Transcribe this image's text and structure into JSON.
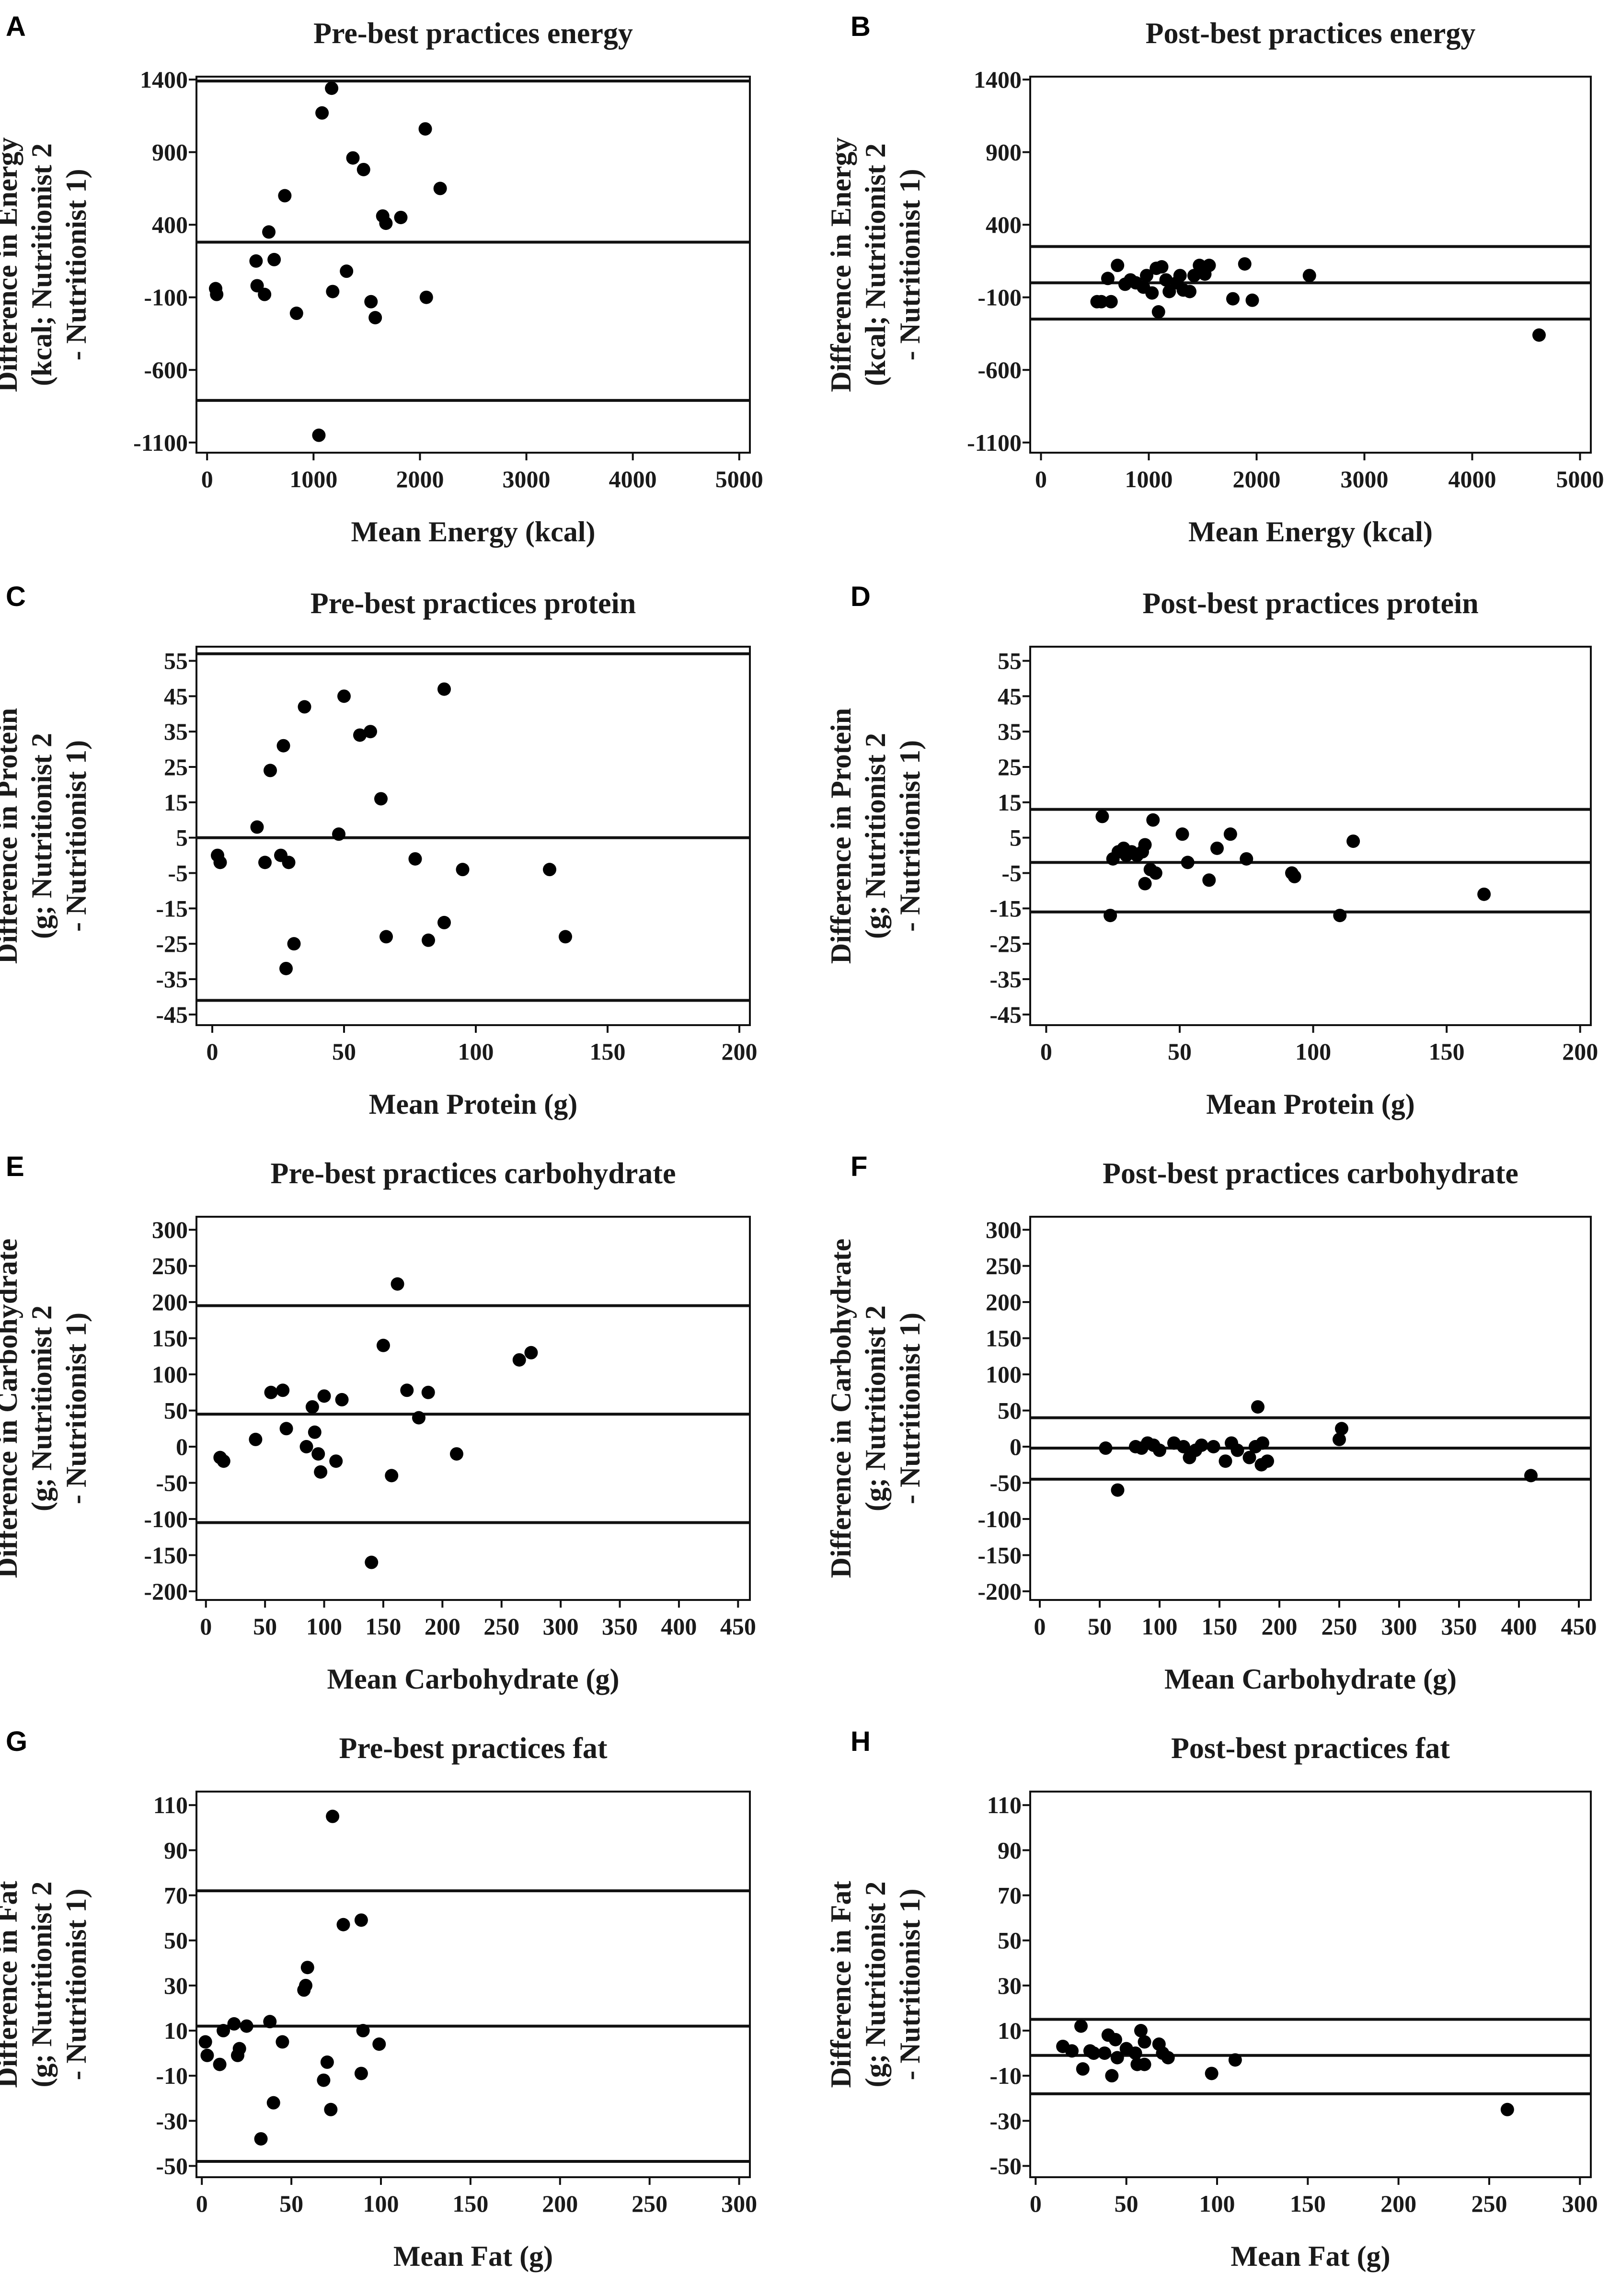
{
  "chart_data": [
    {
      "panel": "A",
      "type": "scatter",
      "title": "Pre-best practices energy",
      "xlabel": "Mean Energy  (kcal)",
      "ylabel": [
        "Difference in Energy",
        "(kcal; Nutritionist 2",
        "- Nutritionist 1)"
      ],
      "xlim": [
        -100,
        5100
      ],
      "ylim": [
        -1170,
        1420
      ],
      "xticks": [
        0,
        1000,
        2000,
        3000,
        4000,
        5000
      ],
      "yticks": [
        1400,
        900,
        400,
        -100,
        -600,
        -1100
      ],
      "hlines": [
        1390,
        280,
        -810
      ],
      "points": [
        [
          80,
          -40
        ],
        [
          90,
          -80
        ],
        [
          460,
          150
        ],
        [
          470,
          -20
        ],
        [
          540,
          -80
        ],
        [
          580,
          350
        ],
        [
          630,
          160
        ],
        [
          730,
          600
        ],
        [
          840,
          -210
        ],
        [
          1050,
          -1050
        ],
        [
          1080,
          1170
        ],
        [
          1170,
          1340
        ],
        [
          1180,
          -60
        ],
        [
          1310,
          80
        ],
        [
          1370,
          860
        ],
        [
          1470,
          780
        ],
        [
          1540,
          -130
        ],
        [
          1580,
          -240
        ],
        [
          1650,
          460
        ],
        [
          1680,
          410
        ],
        [
          1820,
          450
        ],
        [
          2050,
          1060
        ],
        [
          2060,
          -100
        ],
        [
          2190,
          650
        ]
      ]
    },
    {
      "panel": "B",
      "type": "scatter",
      "title": "Post-best practices energy",
      "xlabel": "Mean Energy  (kcal)",
      "ylabel": [
        "Difference in Energy",
        "(kcal; Nutritionist 2",
        "- Nutritionist 1)"
      ],
      "xlim": [
        -100,
        5100
      ],
      "ylim": [
        -1170,
        1420
      ],
      "xticks": [
        0,
        1000,
        2000,
        3000,
        4000,
        5000
      ],
      "yticks": [
        1400,
        900,
        400,
        -100,
        -600,
        -1100
      ],
      "hlines": [
        250,
        0,
        -250
      ],
      "points": [
        [
          520,
          -130
        ],
        [
          560,
          -130
        ],
        [
          620,
          30
        ],
        [
          650,
          -130
        ],
        [
          710,
          120
        ],
        [
          780,
          -10
        ],
        [
          830,
          20
        ],
        [
          880,
          0
        ],
        [
          950,
          -30
        ],
        [
          980,
          50
        ],
        [
          1030,
          -70
        ],
        [
          1070,
          100
        ],
        [
          1090,
          -200
        ],
        [
          1120,
          110
        ],
        [
          1160,
          20
        ],
        [
          1190,
          -60
        ],
        [
          1260,
          0
        ],
        [
          1290,
          50
        ],
        [
          1320,
          -50
        ],
        [
          1380,
          -60
        ],
        [
          1420,
          50
        ],
        [
          1470,
          120
        ],
        [
          1520,
          60
        ],
        [
          1560,
          120
        ],
        [
          1780,
          -110
        ],
        [
          1890,
          130
        ],
        [
          1960,
          -120
        ],
        [
          2490,
          50
        ],
        [
          4620,
          -360
        ]
      ]
    },
    {
      "panel": "C",
      "type": "scatter",
      "title": "Pre-best practices protein",
      "xlabel": "Mean Protein  (g)",
      "ylabel": [
        "Difference in Protein",
        "(g; Nutritionist 2",
        "- Nutritionist 1)"
      ],
      "xlim": [
        -6,
        204
      ],
      "ylim": [
        -48,
        59
      ],
      "xticks": [
        0,
        50,
        100,
        150,
        200
      ],
      "yticks": [
        55,
        45,
        35,
        25,
        15,
        5,
        -5,
        -15,
        -25,
        -35,
        -45
      ],
      "hlines": [
        57,
        5,
        -41
      ],
      "points": [
        [
          2,
          0
        ],
        [
          3,
          -2
        ],
        [
          17,
          8
        ],
        [
          20,
          -2
        ],
        [
          22,
          24
        ],
        [
          26,
          0
        ],
        [
          27,
          31
        ],
        [
          28,
          -32
        ],
        [
          29,
          -2
        ],
        [
          31,
          -25
        ],
        [
          35,
          42
        ],
        [
          48,
          6
        ],
        [
          50,
          45
        ],
        [
          56,
          34
        ],
        [
          60,
          35
        ],
        [
          64,
          16
        ],
        [
          66,
          -23
        ],
        [
          77,
          -1
        ],
        [
          82,
          -24
        ],
        [
          88,
          -19
        ],
        [
          88,
          47
        ],
        [
          95,
          -4
        ],
        [
          128,
          -4
        ],
        [
          134,
          -23
        ]
      ]
    },
    {
      "panel": "D",
      "type": "scatter",
      "title": "Post-best practices protein",
      "xlabel": "Mean Protein  (g)",
      "ylabel": [
        "Difference in Protein",
        "(g; Nutritionist 2",
        "- Nutritionist 1)"
      ],
      "xlim": [
        -6,
        204
      ],
      "ylim": [
        -48,
        59
      ],
      "xticks": [
        0,
        50,
        100,
        150,
        200
      ],
      "yticks": [
        55,
        45,
        35,
        25,
        15,
        5,
        -5,
        -15,
        -25,
        -35,
        -45
      ],
      "hlines": [
        13,
        -2,
        -16
      ],
      "points": [
        [
          21,
          11
        ],
        [
          24,
          -17
        ],
        [
          25,
          -1
        ],
        [
          27,
          1
        ],
        [
          29,
          2
        ],
        [
          30,
          0
        ],
        [
          32,
          1
        ],
        [
          34,
          0
        ],
        [
          36,
          1
        ],
        [
          37,
          3
        ],
        [
          37,
          -8
        ],
        [
          39,
          -4
        ],
        [
          40,
          10
        ],
        [
          41,
          -5
        ],
        [
          51,
          6
        ],
        [
          53,
          -2
        ],
        [
          61,
          -7
        ],
        [
          64,
          2
        ],
        [
          69,
          6
        ],
        [
          75,
          -1
        ],
        [
          92,
          -5
        ],
        [
          93,
          -6
        ],
        [
          110,
          -17
        ],
        [
          115,
          4
        ],
        [
          164,
          -11
        ]
      ]
    },
    {
      "panel": "E",
      "type": "scatter",
      "title": "Pre-best practices carbohydrate",
      "xlabel": "Mean Carbohydrate  (g)",
      "ylabel": [
        "Difference in Carbohydrate",
        "(g; Nutritionist 2",
        "- Nutritionist 1)"
      ],
      "xlim": [
        -8,
        460
      ],
      "ylim": [
        -212,
        318
      ],
      "xticks": [
        0,
        50,
        100,
        150,
        200,
        250,
        300,
        350,
        400,
        450
      ],
      "xticklabels": [
        "0",
        "50",
        "100",
        "150",
        "200",
        "250",
        "300",
        "350",
        "400",
        "450"
      ],
      "yticks": [
        300,
        250,
        200,
        150,
        100,
        50,
        0,
        -50,
        -100,
        -150,
        -200
      ],
      "hlines": [
        195,
        45,
        -105
      ],
      "points": [
        [
          12,
          -15
        ],
        [
          15,
          -20
        ],
        [
          42,
          10
        ],
        [
          55,
          75
        ],
        [
          65,
          78
        ],
        [
          68,
          25
        ],
        [
          85,
          0
        ],
        [
          90,
          55
        ],
        [
          92,
          20
        ],
        [
          95,
          -10
        ],
        [
          97,
          -35
        ],
        [
          100,
          70
        ],
        [
          110,
          -20
        ],
        [
          115,
          65
        ],
        [
          140,
          -160
        ],
        [
          150,
          140
        ],
        [
          157,
          -40
        ],
        [
          162,
          225
        ],
        [
          170,
          78
        ],
        [
          180,
          40
        ],
        [
          188,
          75
        ],
        [
          212,
          -10
        ],
        [
          265,
          120
        ],
        [
          275,
          130
        ]
      ]
    },
    {
      "panel": "F",
      "type": "scatter",
      "title": "Post-best practices carbohydrate",
      "xlabel": "Mean Carbohydrate  (g)",
      "ylabel": [
        "Difference in Carbohydrate",
        "(g; Nutritionist 2",
        "- Nutritionist 1)"
      ],
      "xlim": [
        -8,
        460
      ],
      "ylim": [
        -212,
        318
      ],
      "xticks": [
        0,
        50,
        100,
        150,
        200,
        250,
        300,
        350,
        400,
        450
      ],
      "xticklabels": [
        "0",
        "50",
        "100",
        "150",
        "200",
        "250",
        "300",
        "350",
        "400",
        "450"
      ],
      "yticks": [
        300,
        250,
        200,
        150,
        100,
        50,
        0,
        -50,
        -100,
        -150,
        -200
      ],
      "hlines": [
        40,
        -2,
        -45
      ],
      "points": [
        [
          55,
          -2
        ],
        [
          65,
          -60
        ],
        [
          80,
          0
        ],
        [
          85,
          -2
        ],
        [
          90,
          5
        ],
        [
          95,
          2
        ],
        [
          100,
          -5
        ],
        [
          112,
          5
        ],
        [
          120,
          0
        ],
        [
          125,
          -15
        ],
        [
          130,
          -5
        ],
        [
          135,
          2
        ],
        [
          145,
          0
        ],
        [
          155,
          -20
        ],
        [
          160,
          5
        ],
        [
          165,
          -5
        ],
        [
          175,
          -15
        ],
        [
          180,
          0
        ],
        [
          182,
          55
        ],
        [
          185,
          -25
        ],
        [
          186,
          5
        ],
        [
          190,
          -20
        ],
        [
          250,
          10
        ],
        [
          252,
          25
        ],
        [
          410,
          -40
        ]
      ]
    },
    {
      "panel": "G",
      "type": "scatter",
      "title": "Pre-best practices fat",
      "xlabel": "Mean Fat  (g)",
      "ylabel": [
        "Difference in Fat",
        "(g; Nutritionist 2",
        "- Nutritionist 1)"
      ],
      "xlim": [
        -3,
        306
      ],
      "ylim": [
        -55,
        116
      ],
      "xticks": [
        0,
        50,
        100,
        150,
        200,
        250,
        300
      ],
      "yticks": [
        110,
        90,
        70,
        50,
        30,
        10,
        -10,
        -30,
        -50
      ],
      "hlines": [
        72,
        12,
        -48
      ],
      "points": [
        [
          2,
          5
        ],
        [
          3,
          -1
        ],
        [
          10,
          -5
        ],
        [
          12,
          10
        ],
        [
          18,
          13
        ],
        [
          20,
          -1
        ],
        [
          21,
          2
        ],
        [
          25,
          12
        ],
        [
          33,
          -38
        ],
        [
          38,
          14
        ],
        [
          40,
          -22
        ],
        [
          45,
          5
        ],
        [
          57,
          28
        ],
        [
          58,
          30
        ],
        [
          59,
          38
        ],
        [
          68,
          -12
        ],
        [
          70,
          -4
        ],
        [
          72,
          -25
        ],
        [
          73,
          105
        ],
        [
          79,
          57
        ],
        [
          89,
          59
        ],
        [
          89,
          -9
        ],
        [
          90,
          10
        ],
        [
          99,
          4
        ]
      ]
    },
    {
      "panel": "H",
      "type": "scatter",
      "title": "Post-best practices fat",
      "xlabel": "Mean Fat  (g)",
      "ylabel": [
        "Difference in Fat",
        "(g; Nutritionist 2",
        "- Nutritionist 1)"
      ],
      "xlim": [
        -3,
        306
      ],
      "ylim": [
        -55,
        116
      ],
      "xticks": [
        0,
        50,
        100,
        150,
        200,
        250,
        300
      ],
      "yticks": [
        110,
        90,
        70,
        50,
        30,
        10,
        -10,
        -30,
        -50
      ],
      "hlines": [
        15,
        -1,
        -18
      ],
      "points": [
        [
          15,
          3
        ],
        [
          20,
          1
        ],
        [
          25,
          12
        ],
        [
          26,
          -7
        ],
        [
          30,
          1
        ],
        [
          32,
          0
        ],
        [
          38,
          0
        ],
        [
          40,
          8
        ],
        [
          42,
          -10
        ],
        [
          44,
          6
        ],
        [
          45,
          -2
        ],
        [
          50,
          2
        ],
        [
          55,
          0
        ],
        [
          56,
          -5
        ],
        [
          58,
          10
        ],
        [
          60,
          -5
        ],
        [
          60,
          5
        ],
        [
          68,
          4
        ],
        [
          70,
          0
        ],
        [
          73,
          -2
        ],
        [
          97,
          -9
        ],
        [
          110,
          -3
        ],
        [
          260,
          -25
        ]
      ]
    }
  ]
}
